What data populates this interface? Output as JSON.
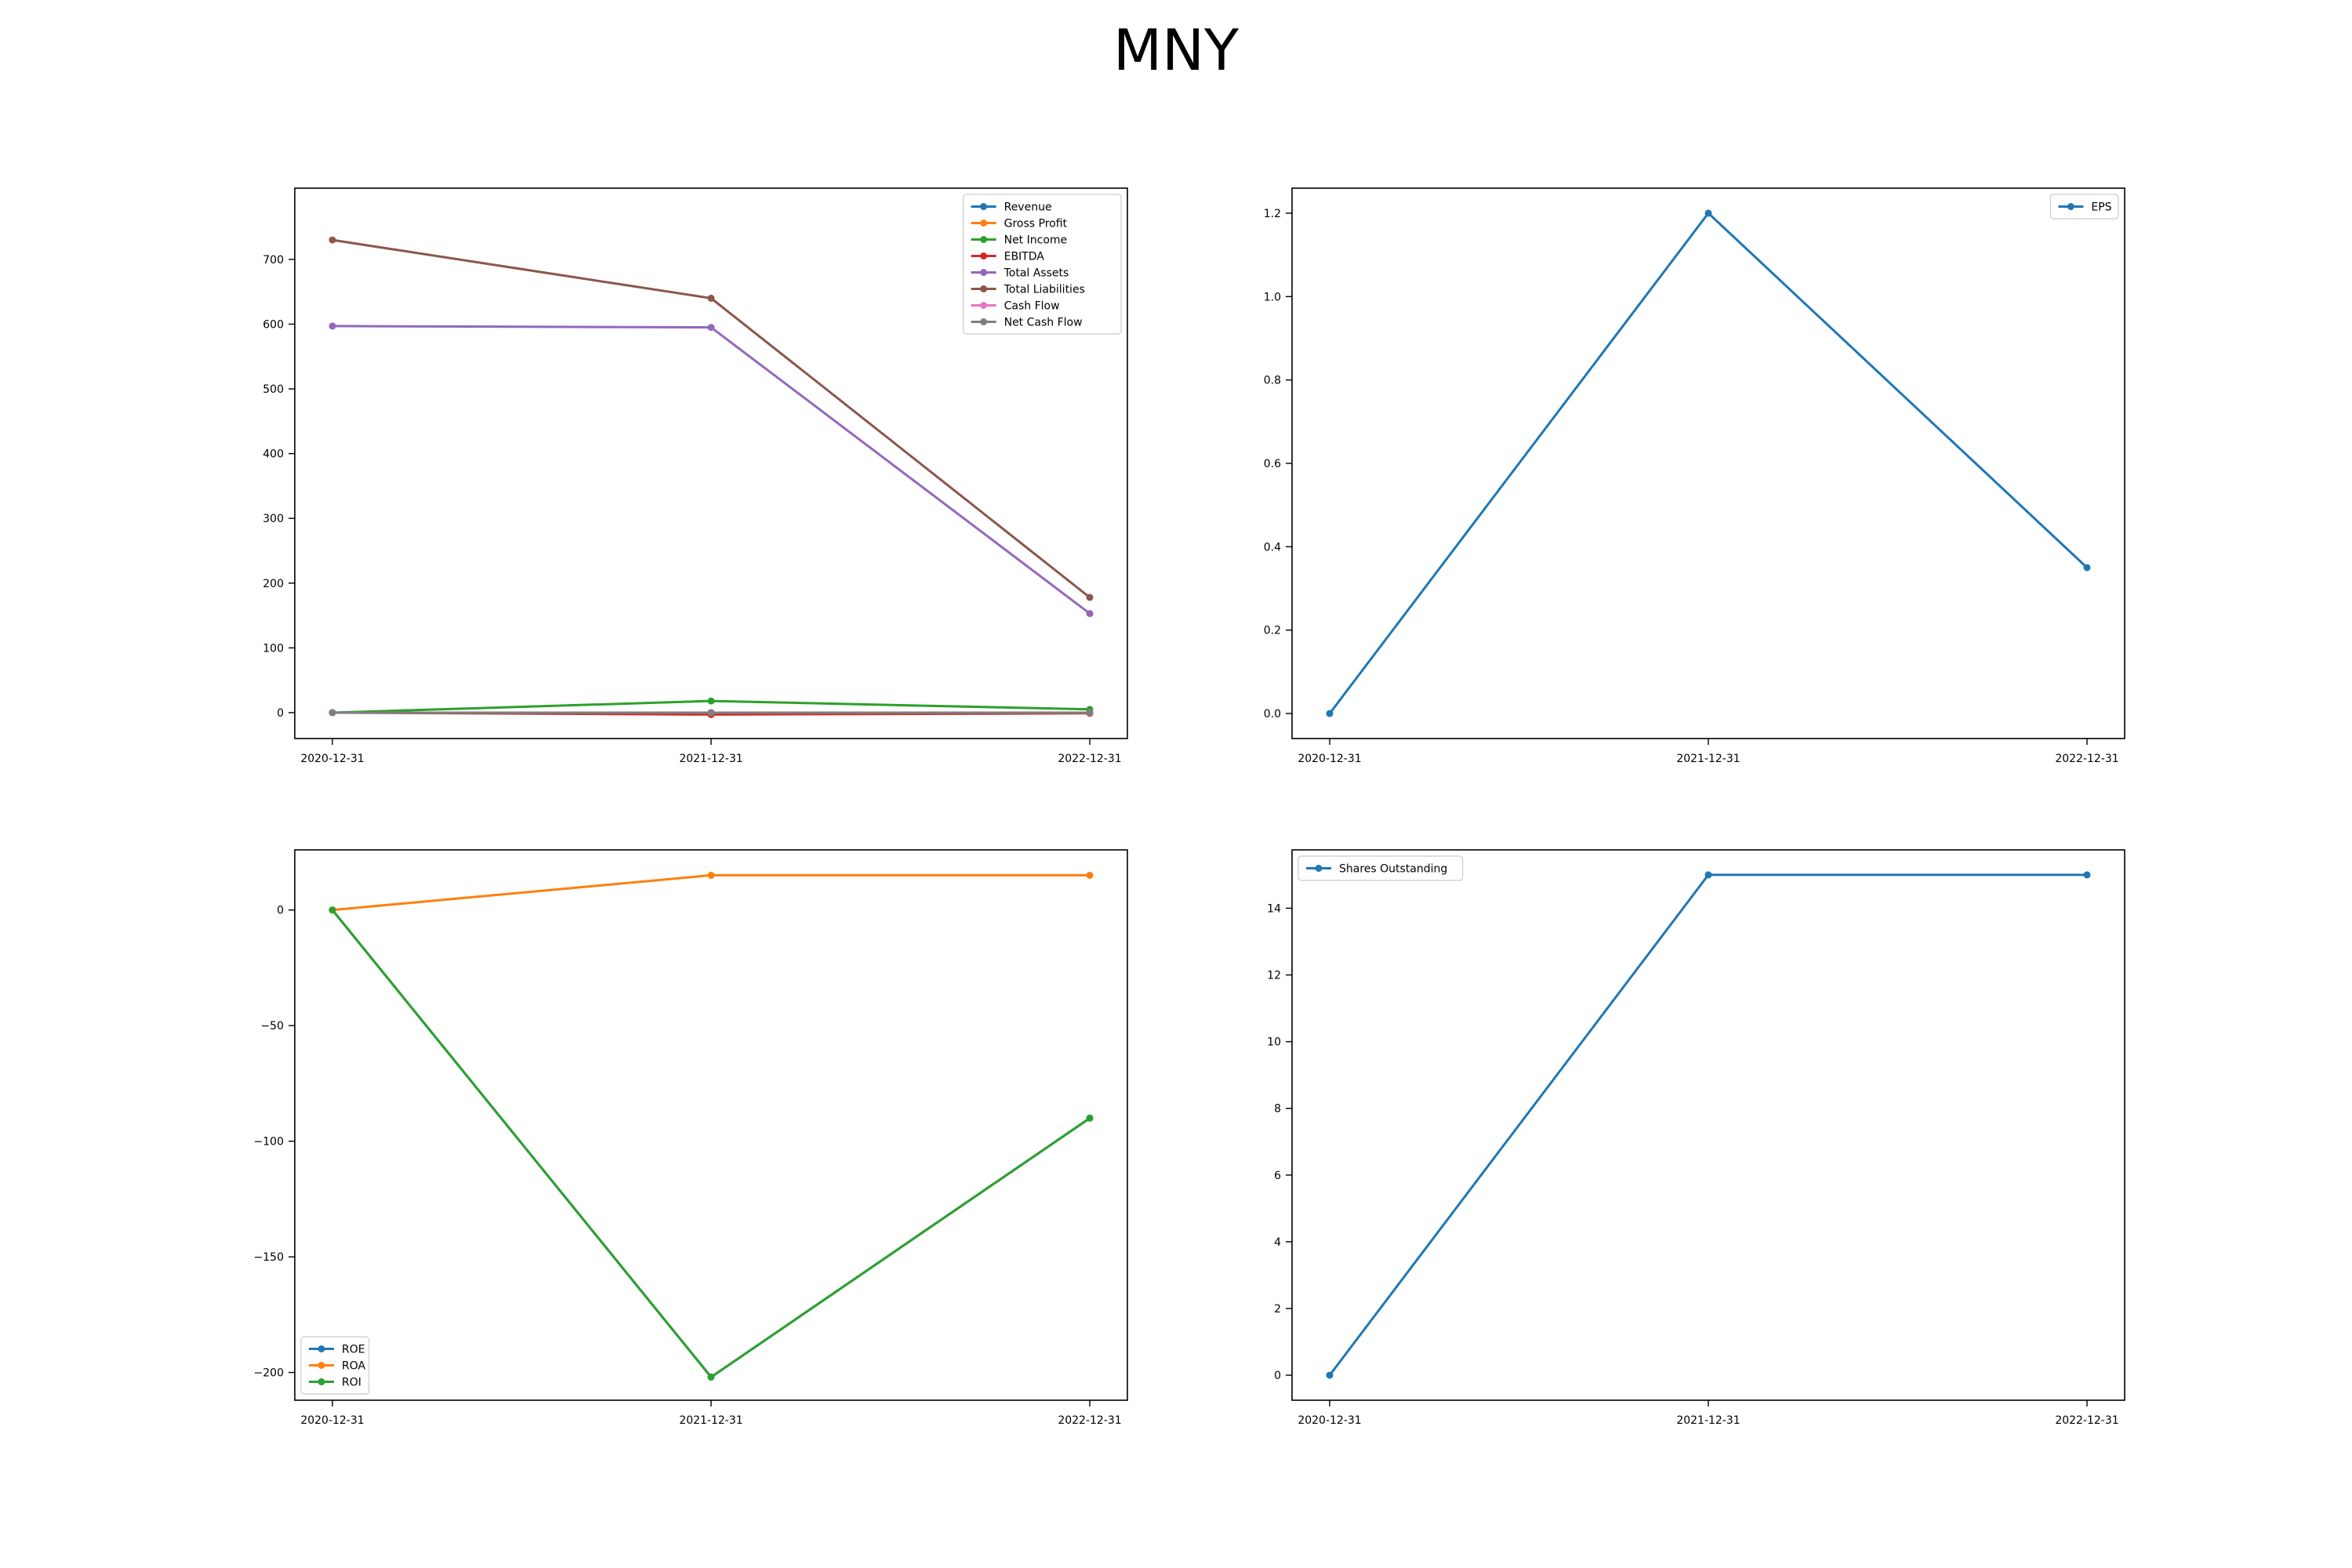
{
  "figure": {
    "title": "MNY"
  },
  "chart_data": [
    {
      "type": "line",
      "categories": [
        "2020-12-31",
        "2021-12-31",
        "2022-12-31"
      ],
      "ylim": [
        -40,
        810
      ],
      "yticks": [
        0,
        100,
        200,
        300,
        400,
        500,
        600,
        700
      ],
      "legend_placement": "top-right",
      "grid": false,
      "series": [
        {
          "name": "Revenue",
          "color": "#1f77b4",
          "values": [
            0,
            0,
            0
          ]
        },
        {
          "name": "Gross Profit",
          "color": "#ff7f0e",
          "values": [
            0,
            0,
            0
          ]
        },
        {
          "name": "Net Income",
          "color": "#2ca02c",
          "values": [
            0,
            18,
            5
          ]
        },
        {
          "name": "EBITDA",
          "color": "#d62728",
          "values": [
            0,
            -3,
            -1
          ]
        },
        {
          "name": "Total Assets",
          "color": "#9467bd",
          "values": [
            597,
            595,
            153
          ]
        },
        {
          "name": "Total Liabilities",
          "color": "#8c564b",
          "values": [
            730,
            640,
            178
          ]
        },
        {
          "name": "Cash Flow",
          "color": "#e377c2",
          "values": [
            0,
            0,
            0
          ]
        },
        {
          "name": "Net Cash Flow",
          "color": "#7f7f7f",
          "values": [
            0,
            0,
            0
          ]
        }
      ]
    },
    {
      "type": "line",
      "categories": [
        "2020-12-31",
        "2021-12-31",
        "2022-12-31"
      ],
      "ylim": [
        -0.06,
        1.26
      ],
      "yticks": [
        0.0,
        0.2,
        0.4,
        0.6,
        0.8,
        1.0,
        1.2
      ],
      "tick_decimals": 1,
      "legend_placement": "top-right",
      "grid": false,
      "series": [
        {
          "name": "EPS",
          "color": "#1f77b4",
          "values": [
            0,
            1.2,
            0.35
          ]
        }
      ]
    },
    {
      "type": "line",
      "categories": [
        "2020-12-31",
        "2021-12-31",
        "2022-12-31"
      ],
      "ylim": [
        -212,
        26
      ],
      "yticks": [
        -200,
        -150,
        -100,
        -50,
        0
      ],
      "legend_placement": "bottom-left",
      "grid": false,
      "series": [
        {
          "name": "ROE",
          "color": "#1f77b4",
          "values": [
            0,
            -202,
            -90
          ]
        },
        {
          "name": "ROA",
          "color": "#ff7f0e",
          "values": [
            0,
            15,
            15
          ]
        },
        {
          "name": "ROI",
          "color": "#2ca02c",
          "values": [
            0,
            -202,
            -90
          ]
        }
      ]
    },
    {
      "type": "line",
      "categories": [
        "2020-12-31",
        "2021-12-31",
        "2022-12-31"
      ],
      "ylim": [
        -0.75,
        15.75
      ],
      "yticks": [
        0,
        2,
        4,
        6,
        8,
        10,
        12,
        14
      ],
      "legend_placement": "top-left",
      "grid": false,
      "series": [
        {
          "name": "Shares Outstanding",
          "color": "#1f77b4",
          "values": [
            0,
            15,
            15
          ]
        }
      ]
    }
  ]
}
